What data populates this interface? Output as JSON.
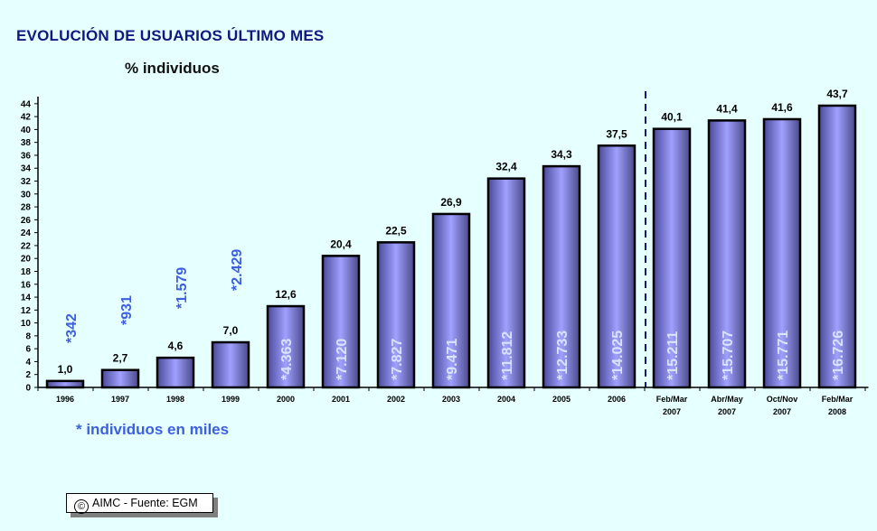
{
  "header": {
    "title": "EVOLUCIÓN DE USUARIOS ÚLTIMO MES",
    "subtitle": "% individuos"
  },
  "footnote": "* individuos en miles",
  "source": {
    "copyright_icon": "©",
    "text": "AIMC - Fuente: EGM"
  },
  "colors": {
    "background": "#e6ffff",
    "title": "#0d1a80",
    "bar_light": "#a0a0ff",
    "bar_dark": "#4a4a9a",
    "annotation_outside": "#3d5fe0",
    "annotation_inside": "#d8e4ff",
    "divider": "#0d1a80"
  },
  "chart_data": {
    "type": "bar",
    "title": "EVOLUCIÓN DE USUARIOS ÚLTIMO MES",
    "subtitle": "% individuos",
    "xlabel": "",
    "ylabel": "% individuos",
    "ylim": [
      0,
      44
    ],
    "yticks": [
      0,
      2,
      4,
      6,
      8,
      10,
      12,
      14,
      16,
      18,
      20,
      22,
      24,
      26,
      28,
      30,
      32,
      34,
      36,
      38,
      40,
      42,
      44
    ],
    "grid": false,
    "legend": null,
    "categories": [
      "1996",
      "1997",
      "1998",
      "1999",
      "2000",
      "2001",
      "2002",
      "2003",
      "2004",
      "2005",
      "2006",
      "Feb/Mar 2007",
      "Abr/May 2007",
      "Oct/Nov 2007",
      "Feb/Mar 2008"
    ],
    "category_lines": [
      [
        "1996"
      ],
      [
        "1997"
      ],
      [
        "1998"
      ],
      [
        "1999"
      ],
      [
        "2000"
      ],
      [
        "2001"
      ],
      [
        "2002"
      ],
      [
        "2003"
      ],
      [
        "2004"
      ],
      [
        "2005"
      ],
      [
        "2006"
      ],
      [
        "Feb/Mar",
        "2007"
      ],
      [
        "Abr/May",
        "2007"
      ],
      [
        "Oct/Nov",
        "2007"
      ],
      [
        "Feb/Mar",
        "2008"
      ]
    ],
    "values": [
      1.0,
      2.7,
      4.6,
      7.0,
      12.6,
      20.4,
      22.5,
      26.9,
      32.4,
      34.3,
      37.5,
      40.1,
      41.4,
      41.6,
      43.7
    ],
    "value_labels": [
      "1,0",
      "2,7",
      "4,6",
      "7,0",
      "12,6",
      "20,4",
      "22,5",
      "26,9",
      "32,4",
      "34,3",
      "37,5",
      "40,1",
      "41,4",
      "41,6",
      "43,7"
    ],
    "series": [
      {
        "name": "% individuos",
        "values": [
          1.0,
          2.7,
          4.6,
          7.0,
          12.6,
          20.4,
          22.5,
          26.9,
          32.4,
          34.3,
          37.5,
          40.1,
          41.4,
          41.6,
          43.7
        ]
      },
      {
        "name": "individuos en miles",
        "values": [
          342,
          931,
          1579,
          2429,
          4363,
          7120,
          7827,
          9471,
          11812,
          12733,
          14025,
          15211,
          15707,
          15771,
          16726
        ]
      }
    ],
    "thousands_labels": [
      "*342",
      "*931",
      "*1.579",
      "*2.429",
      "*4.363",
      "*7.120",
      "*7.827",
      "*9.471",
      "*11.812",
      "*12.733",
      "*14.025",
      "*15.211",
      "*15.707",
      "*15.771",
      "*16.726"
    ],
    "annotations": [
      "Dashed vertical divider between 2006 and Feb/Mar 2007",
      "* individuos en miles"
    ]
  }
}
